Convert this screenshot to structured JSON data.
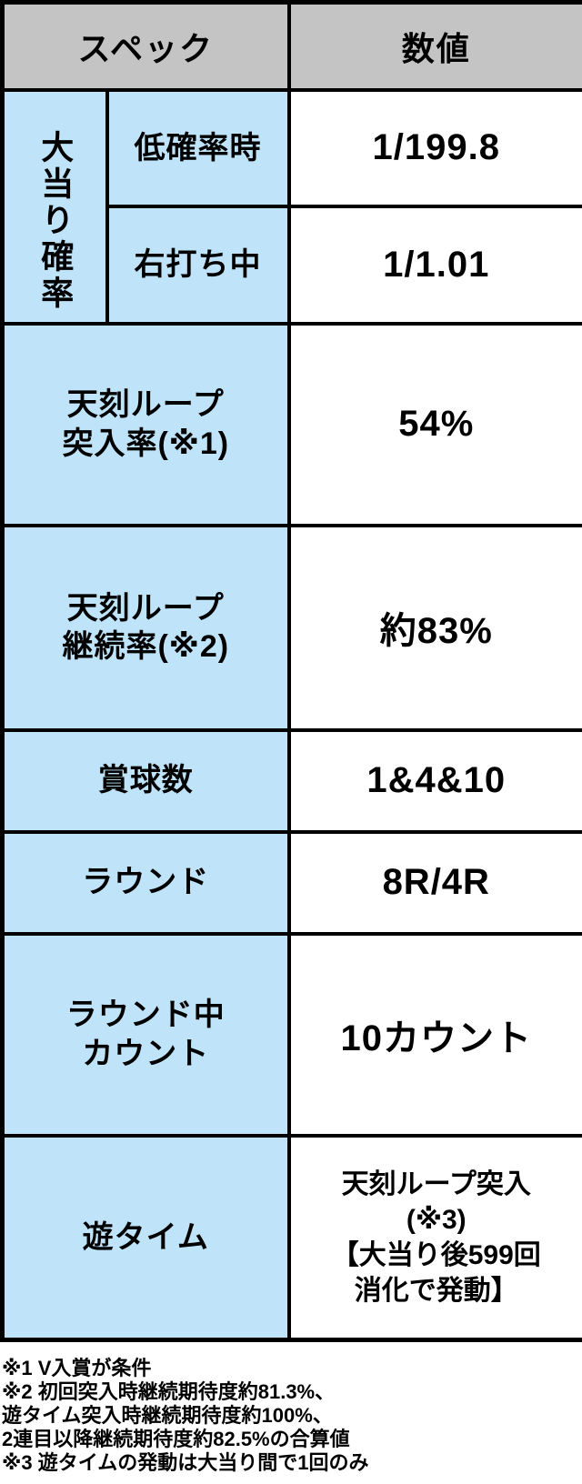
{
  "colors": {
    "header_bg": "#c4c4c4",
    "spec_bg": "#bfe3f8",
    "value_bg": "#ffffff",
    "border": "#000000",
    "text": "#000000"
  },
  "table": {
    "header": {
      "spec": "スペック",
      "value": "数値"
    },
    "group": {
      "label": "大当り確率"
    },
    "sub_rows": [
      {
        "label": "低確率時",
        "value": "1/199.8"
      },
      {
        "label": "右打ち中",
        "value": "1/1.01"
      }
    ],
    "rows": [
      {
        "label": "天刻ループ\n突入率(※1)",
        "value": "54%"
      },
      {
        "label": "天刻ループ\n継続率(※2)",
        "value": "約83%"
      },
      {
        "label": "賞球数",
        "value": "1&4&10"
      },
      {
        "label": "ラウンド",
        "value": "8R/4R"
      },
      {
        "label": "ラウンド中\nカウント",
        "value": "10カウント"
      },
      {
        "label": "遊タイム",
        "value": "天刻ループ突入\n(※3)\n【大当り後599回\n消化で発動】"
      }
    ]
  },
  "footnotes": [
    "※1 V入賞が条件",
    "※2 初回突入時継続期待度約81.3%、",
    "遊タイム突入時継続期待度約100%、",
    "2連目以降継続期待度約82.5%の合算値",
    "※3 遊タイムの発動は大当り間で1回のみ"
  ],
  "chart_data": {
    "type": "table",
    "title": "スペック表",
    "columns": [
      "スペック",
      "数値"
    ],
    "rows": [
      [
        "大当り確率 低確率時",
        "1/199.8"
      ],
      [
        "大当り確率 右打ち中",
        "1/1.01"
      ],
      [
        "天刻ループ突入率(※1)",
        "54%"
      ],
      [
        "天刻ループ継続率(※2)",
        "約83%"
      ],
      [
        "賞球数",
        "1&4&10"
      ],
      [
        "ラウンド",
        "8R/4R"
      ],
      [
        "ラウンド中カウント",
        "10カウント"
      ],
      [
        "遊タイム",
        "天刻ループ突入(※3)【大当り後599回消化で発動】"
      ]
    ],
    "notes": [
      "※1 V入賞が条件",
      "※2 初回突入時継続期待度約81.3%、遊タイム突入時継続期待度約100%、2連目以降継続期待度約82.5%の合算値",
      "※3 遊タイムの発動は大当り間で1回のみ"
    ],
    "layout_hints": {
      "header_bg": "#c4c4c4",
      "spec_column_bg": "#bfe3f8",
      "value_column_bg": "#ffffff",
      "border": "black thick grid"
    }
  }
}
